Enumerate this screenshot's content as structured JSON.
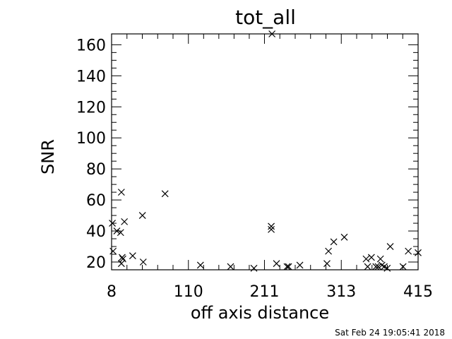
{
  "chart_data": {
    "type": "scatter",
    "title": "tot_all",
    "xlabel": "off axis distance",
    "ylabel": "SNR",
    "xlim": [
      8,
      415
    ],
    "ylim": [
      15,
      167
    ],
    "x_ticks": [
      {
        "value": 8,
        "label": "8"
      },
      {
        "value": 110,
        "label": "110"
      },
      {
        "value": 211,
        "label": "211"
      },
      {
        "value": 313,
        "label": "313"
      },
      {
        "value": 415,
        "label": "415"
      }
    ],
    "y_ticks": [
      {
        "value": 20,
        "label": "20"
      },
      {
        "value": 40,
        "label": "40"
      },
      {
        "value": 60,
        "label": "60"
      },
      {
        "value": 80,
        "label": "80"
      },
      {
        "value": 100,
        "label": "100"
      },
      {
        "value": 120,
        "label": "120"
      },
      {
        "value": 140,
        "label": "140"
      },
      {
        "value": 160,
        "label": "160"
      }
    ],
    "grid": false,
    "marker": "x",
    "marker_color": "#000000",
    "series": [
      {
        "points": [
          {
            "x": 9,
            "y": 45
          },
          {
            "x": 10,
            "y": 27
          },
          {
            "x": 15,
            "y": 40
          },
          {
            "x": 20,
            "y": 39
          },
          {
            "x": 21,
            "y": 65
          },
          {
            "x": 21,
            "y": 19
          },
          {
            "x": 22,
            "y": 23
          },
          {
            "x": 23,
            "y": 22
          },
          {
            "x": 25,
            "y": 46
          },
          {
            "x": 36,
            "y": 24
          },
          {
            "x": 49,
            "y": 50
          },
          {
            "x": 50,
            "y": 20
          },
          {
            "x": 79,
            "y": 64
          },
          {
            "x": 126,
            "y": 18
          },
          {
            "x": 166,
            "y": 17
          },
          {
            "x": 197,
            "y": 16
          },
          {
            "x": 220,
            "y": 43
          },
          {
            "x": 220,
            "y": 41
          },
          {
            "x": 221,
            "y": 167
          },
          {
            "x": 227,
            "y": 19
          },
          {
            "x": 241,
            "y": 17
          },
          {
            "x": 243,
            "y": 17
          },
          {
            "x": 258,
            "y": 18
          },
          {
            "x": 294,
            "y": 19
          },
          {
            "x": 296,
            "y": 27
          },
          {
            "x": 303,
            "y": 33
          },
          {
            "x": 317,
            "y": 36
          },
          {
            "x": 346,
            "y": 22
          },
          {
            "x": 348,
            "y": 17
          },
          {
            "x": 353,
            "y": 23
          },
          {
            "x": 359,
            "y": 17
          },
          {
            "x": 362,
            "y": 17
          },
          {
            "x": 365,
            "y": 22
          },
          {
            "x": 367,
            "y": 18
          },
          {
            "x": 370,
            "y": 17
          },
          {
            "x": 374,
            "y": 16
          },
          {
            "x": 378,
            "y": 30
          },
          {
            "x": 395,
            "y": 17
          },
          {
            "x": 402,
            "y": 27
          },
          {
            "x": 415,
            "y": 26
          }
        ]
      }
    ]
  },
  "footer": {
    "timestamp": "Sat Feb 24 19:05:41 2018"
  }
}
